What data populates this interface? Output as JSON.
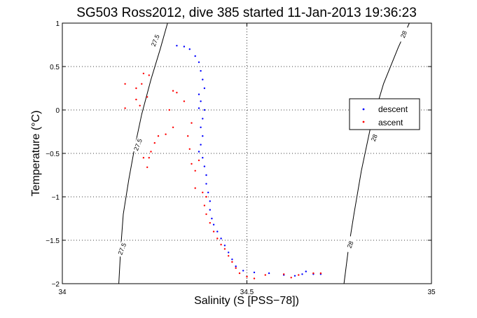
{
  "chart_data": {
    "type": "scatter",
    "title": "SG503 Ross2012, dive 385 started 11-Jan-2013 19:36:23",
    "xlabel": "Salinity (S [PSS−78])",
    "ylabel": "Temperature (°C)",
    "xlim": [
      34,
      35
    ],
    "ylim": [
      -2,
      1
    ],
    "xticks": [
      34,
      34.5,
      35
    ],
    "yticks": [
      -2,
      -1.5,
      -1,
      -0.5,
      0,
      0.5,
      1
    ],
    "x_tick_labels": [
      "34",
      "34.5",
      "35"
    ],
    "y_tick_labels": [
      "−2",
      "−1.5",
      "−1",
      "−0.5",
      "0",
      "0.5",
      "1"
    ],
    "grid": true,
    "legend_position": "right",
    "series": [
      {
        "name": "descent",
        "color": "#0000ff",
        "marker": "dot",
        "points": [
          [
            34.31,
            0.74
          ],
          [
            34.33,
            0.73
          ],
          [
            34.345,
            0.7
          ],
          [
            34.36,
            0.62
          ],
          [
            34.37,
            0.55
          ],
          [
            34.375,
            0.45
          ],
          [
            34.38,
            0.35
          ],
          [
            34.385,
            0.25
          ],
          [
            34.37,
            0.18
          ],
          [
            34.375,
            0.1
          ],
          [
            34.37,
            0.02
          ],
          [
            34.385,
            0.0
          ],
          [
            34.38,
            -0.1
          ],
          [
            34.375,
            -0.2
          ],
          [
            34.38,
            -0.3
          ],
          [
            34.375,
            -0.4
          ],
          [
            34.37,
            -0.48
          ],
          [
            34.38,
            -0.55
          ],
          [
            34.385,
            -0.65
          ],
          [
            34.39,
            -0.75
          ],
          [
            34.39,
            -0.85
          ],
          [
            34.395,
            -0.95
          ],
          [
            34.4,
            -1.05
          ],
          [
            34.4,
            -1.15
          ],
          [
            34.405,
            -1.25
          ],
          [
            34.41,
            -1.32
          ],
          [
            34.42,
            -1.4
          ],
          [
            34.43,
            -1.48
          ],
          [
            34.44,
            -1.56
          ],
          [
            34.45,
            -1.64
          ],
          [
            34.46,
            -1.72
          ],
          [
            34.47,
            -1.8
          ],
          [
            34.49,
            -1.85
          ],
          [
            34.52,
            -1.87
          ],
          [
            34.56,
            -1.88
          ],
          [
            34.6,
            -1.9
          ],
          [
            34.63,
            -1.91
          ],
          [
            34.65,
            -1.89
          ],
          [
            34.66,
            -1.86
          ],
          [
            34.68,
            -1.89
          ],
          [
            34.7,
            -1.89
          ]
        ]
      },
      {
        "name": "ascent",
        "color": "#ff0000",
        "marker": "dot",
        "points": [
          [
            34.22,
            0.42
          ],
          [
            34.235,
            0.4
          ],
          [
            34.215,
            0.3
          ],
          [
            34.2,
            0.25
          ],
          [
            34.23,
            0.15
          ],
          [
            34.17,
            0.3
          ],
          [
            34.2,
            0.12
          ],
          [
            34.21,
            0.05
          ],
          [
            34.17,
            0.02
          ],
          [
            34.3,
            0.22
          ],
          [
            34.31,
            0.2
          ],
          [
            34.33,
            0.1
          ],
          [
            34.29,
            0.0
          ],
          [
            34.3,
            -0.2
          ],
          [
            34.28,
            -0.28
          ],
          [
            34.26,
            -0.3
          ],
          [
            34.25,
            -0.38
          ],
          [
            34.24,
            -0.48
          ],
          [
            34.235,
            -0.55
          ],
          [
            34.22,
            -0.55
          ],
          [
            34.23,
            -0.66
          ],
          [
            34.34,
            -0.3
          ],
          [
            34.35,
            -0.15
          ],
          [
            34.345,
            -0.45
          ],
          [
            34.35,
            -0.62
          ],
          [
            34.36,
            -0.7
          ],
          [
            34.37,
            -0.58
          ],
          [
            34.36,
            -0.9
          ],
          [
            34.38,
            -0.95
          ],
          [
            34.39,
            -1.0
          ],
          [
            34.385,
            -1.1
          ],
          [
            34.39,
            -1.2
          ],
          [
            34.4,
            -1.3
          ],
          [
            34.41,
            -1.4
          ],
          [
            34.42,
            -1.48
          ],
          [
            34.43,
            -1.55
          ],
          [
            34.44,
            -1.6
          ],
          [
            34.45,
            -1.68
          ],
          [
            34.46,
            -1.75
          ],
          [
            34.47,
            -1.82
          ],
          [
            34.48,
            -1.88
          ],
          [
            34.5,
            -1.92
          ],
          [
            34.52,
            -1.94
          ],
          [
            34.55,
            -1.9
          ],
          [
            34.6,
            -1.89
          ],
          [
            34.64,
            -1.9
          ],
          [
            34.68,
            -1.88
          ],
          [
            34.7,
            -1.88
          ],
          [
            34.62,
            -1.93
          ]
        ]
      }
    ],
    "contours": [
      {
        "level": "27.5",
        "line": [
          [
            34.153,
            -2
          ],
          [
            34.158,
            -1.6
          ],
          [
            34.165,
            -1.2
          ],
          [
            34.18,
            -0.8
          ],
          [
            34.195,
            -0.45
          ],
          [
            34.215,
            -0.05
          ],
          [
            34.24,
            0.35
          ],
          [
            34.265,
            0.7
          ],
          [
            34.285,
            1
          ]
        ],
        "labels": [
          [
            34.162,
            -1.6
          ],
          [
            34.205,
            -0.4
          ],
          [
            34.252,
            0.8
          ]
        ]
      },
      {
        "level": "28",
        "line": [
          [
            34.763,
            -2
          ],
          [
            34.775,
            -1.6
          ],
          [
            34.79,
            -1.2
          ],
          [
            34.81,
            -0.7
          ],
          [
            34.835,
            -0.2
          ],
          [
            34.87,
            0.3
          ],
          [
            34.91,
            0.72
          ],
          [
            34.94,
            1
          ]
        ],
        "labels": [
          [
            34.78,
            -1.55
          ],
          [
            34.845,
            -0.32
          ],
          [
            34.925,
            0.87
          ]
        ]
      }
    ],
    "legend": {
      "entries": [
        "descent",
        "ascent"
      ]
    }
  }
}
